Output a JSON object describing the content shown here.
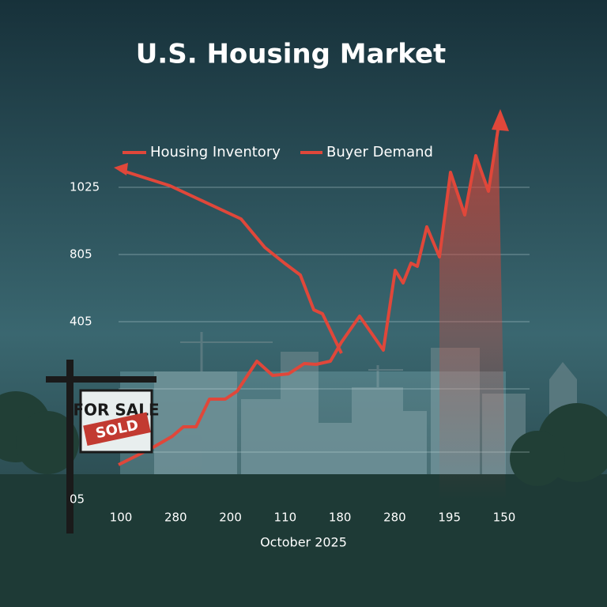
{
  "header": {
    "title": "U.S. Housing Market"
  },
  "legend": [
    {
      "label": "Housing Inventory"
    },
    {
      "label": "Buyer Demand"
    }
  ],
  "y_axis": {
    "labels": [
      "1025",
      "805",
      "405",
      "05"
    ]
  },
  "x_axis": {
    "labels": [
      "100",
      "280",
      "200",
      "110",
      "180",
      "280",
      "195",
      "150"
    ],
    "title": "October 2025"
  },
  "sign": {
    "text": "FOR SALE",
    "overlay": "SOLD"
  }
}
